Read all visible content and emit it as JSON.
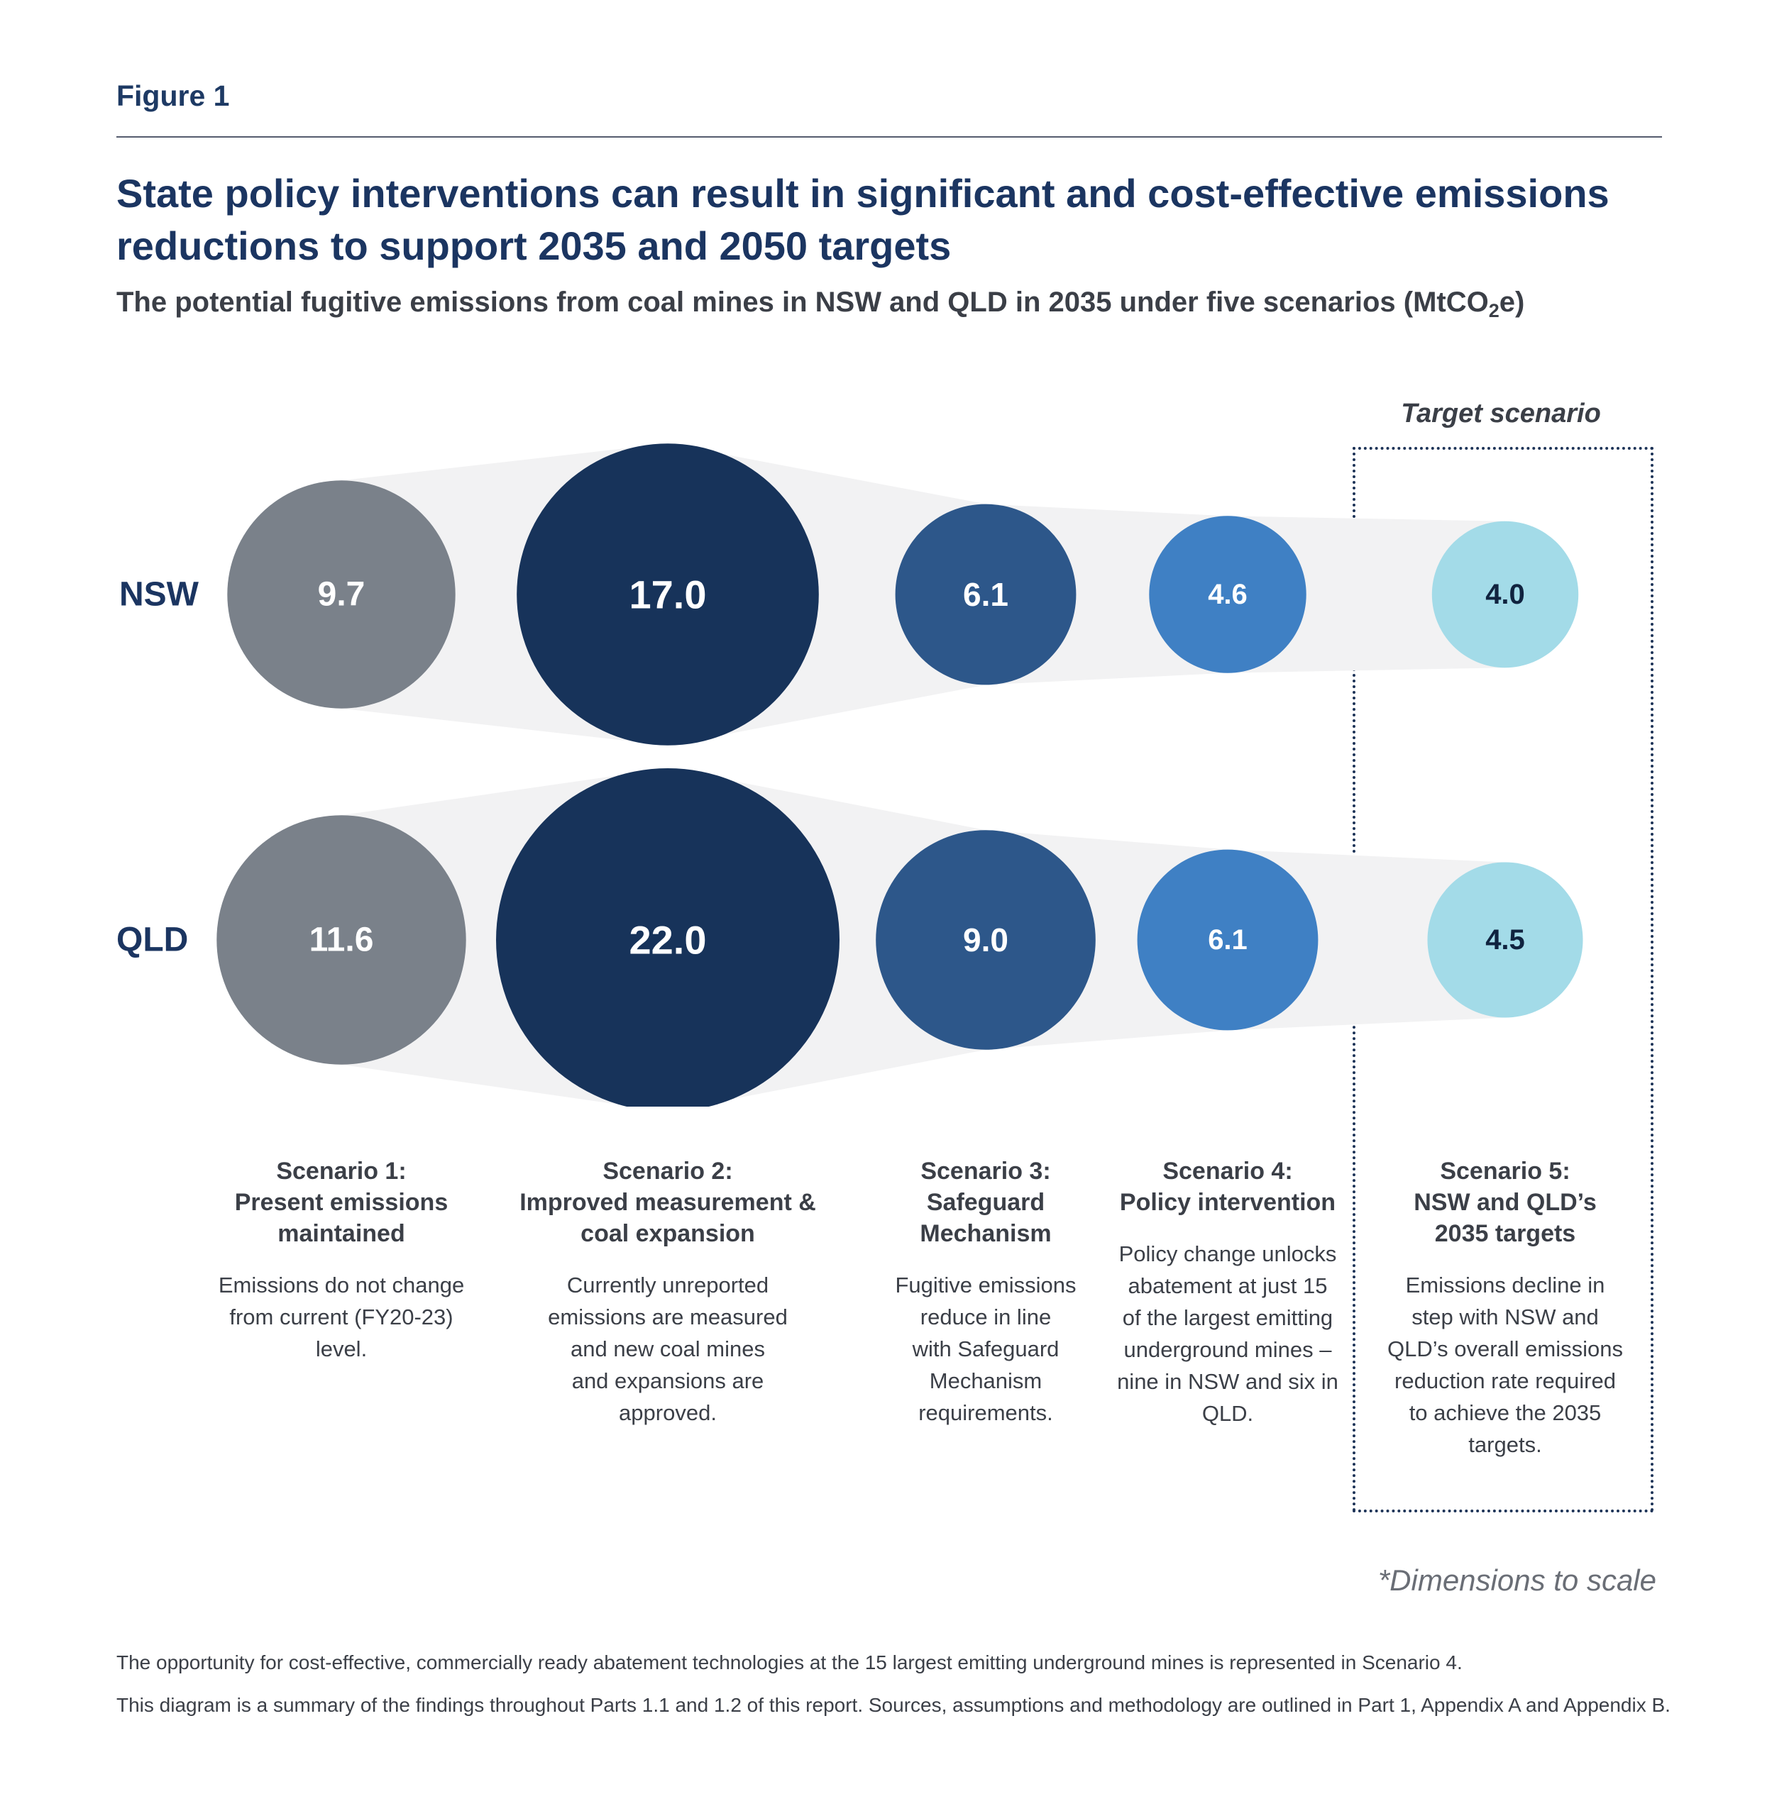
{
  "figure_label": "Figure 1",
  "title": "State policy interventions can result in significant and cost-effective emissions reductions to support 2035 and 2050 targets",
  "subtitle_main": "The potential fugitive emissions from coal mines in NSW and QLD in 2035 under five scenarios (MtCO",
  "subtitle_sub": "2",
  "subtitle_end": "e)",
  "target_label": "Target scenario",
  "scale_note": "*Dimensions to scale",
  "footer_line1": "The opportunity for cost-effective, commercially ready abatement technologies at the 15 largest emitting underground mines is represented in Scenario 4.",
  "footer_line2": "This diagram is a summary of the findings throughout Parts 1.1 and 1.2 of this report. Sources, assumptions and methodology are outlined in Part 1, Appendix A and Appendix B.",
  "colors": {
    "scenario1": "#7a818a",
    "scenario2": "#17335a",
    "scenario3": "#2d578a",
    "scenario4": "#3f80c4",
    "scenario5": "#a3dbe8",
    "ribbon": "#f2f2f3"
  },
  "scenarios": [
    {
      "title": "Scenario 1:\nPresent emissions\nmaintained",
      "description": "Emissions do not change\nfrom current (FY20-23)\nlevel."
    },
    {
      "title": "Scenario 2:\nImproved measurement &\ncoal expansion",
      "description": "Currently unreported\nemissions are measured\nand new coal mines\nand expansions are\napproved."
    },
    {
      "title": "Scenario 3:\nSafeguard\nMechanism",
      "description": "Fugitive emissions\nreduce in line\nwith Safeguard\nMechanism\nrequirements."
    },
    {
      "title": "Scenario 4:\nPolicy intervention",
      "description": "Policy change unlocks\nabatement at just 15\nof the largest emitting\nunderground mines –\nnine in NSW and six in\nQLD."
    },
    {
      "title": "Scenario 5:\nNSW and QLD’s\n2035 targets",
      "description": "Emissions decline in\nstep with NSW and\nQLD’s overall emissions\nreduction rate required\nto achieve the 2035\ntargets."
    }
  ],
  "chart_data": {
    "type": "bubble",
    "categories": [
      "Scenario 1",
      "Scenario 2",
      "Scenario 3",
      "Scenario 4",
      "Scenario 5"
    ],
    "series": [
      {
        "name": "NSW",
        "values": [
          9.7,
          17.0,
          6.1,
          4.6,
          4.0
        ],
        "labels": [
          "9.7",
          "17.0",
          "6.1",
          "4.6",
          "4.0"
        ]
      },
      {
        "name": "QLD",
        "values": [
          11.6,
          22.0,
          9.0,
          6.1,
          4.5
        ],
        "labels": [
          "11.6",
          "22.0",
          "9.0",
          "6.1",
          "4.5"
        ]
      }
    ],
    "size_encoding": "area proportional to value",
    "unit": "MtCO2e"
  }
}
